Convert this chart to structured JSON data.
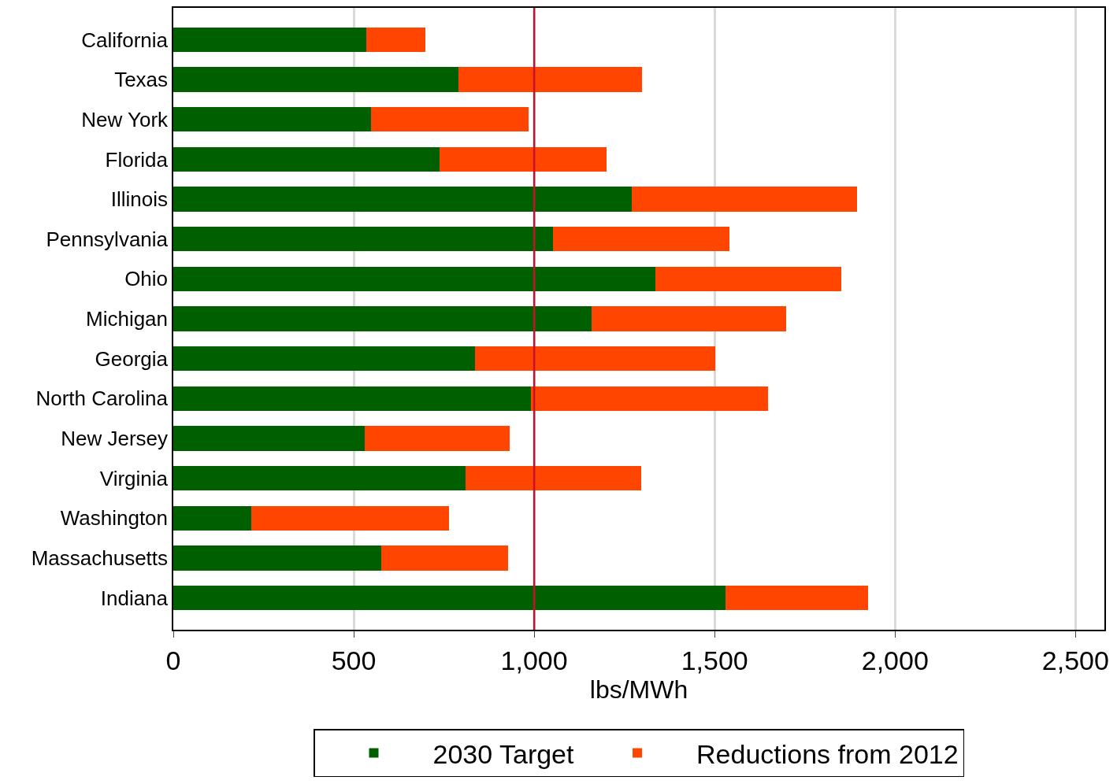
{
  "chart_data": {
    "type": "bar",
    "orientation": "horizontal",
    "stacked": true,
    "xlabel": "lbs/MWh",
    "categories": [
      "California",
      "Texas",
      "New York",
      "Florida",
      "Illinois",
      "Pennsylvania",
      "Ohio",
      "Michigan",
      "Georgia",
      "North Carolina",
      "New Jersey",
      "Virginia",
      "Washington",
      "Massachusetts",
      "Indiana"
    ],
    "series": [
      {
        "name": "2030 Target",
        "color": "#006000",
        "values": [
          534,
          791,
          548,
          738,
          1271,
          1051,
          1336,
          1159,
          835,
          992,
          530,
          810,
          215,
          576,
          1529
        ]
      },
      {
        "name": "Reductions from 2012",
        "color": "#ff4500",
        "values": [
          165,
          508,
          436,
          462,
          624,
          491,
          515,
          539,
          666,
          655,
          403,
          487,
          550,
          351,
          397
        ]
      }
    ],
    "xlim": [
      0,
      2580
    ],
    "xticks": [
      0,
      {
        "value": 500,
        "label": "500"
      },
      {
        "value": 1000,
        "label": "1,000"
      },
      {
        "value": 1500,
        "label": "1,500"
      },
      {
        "value": 2000,
        "label": "2,000"
      },
      {
        "value": 2500,
        "label": "2,500"
      }
    ],
    "grid": "x",
    "legend": "bottom",
    "ref_lines": [
      {
        "axis": "x",
        "value": 1000,
        "color": "#c8102e"
      }
    ]
  }
}
